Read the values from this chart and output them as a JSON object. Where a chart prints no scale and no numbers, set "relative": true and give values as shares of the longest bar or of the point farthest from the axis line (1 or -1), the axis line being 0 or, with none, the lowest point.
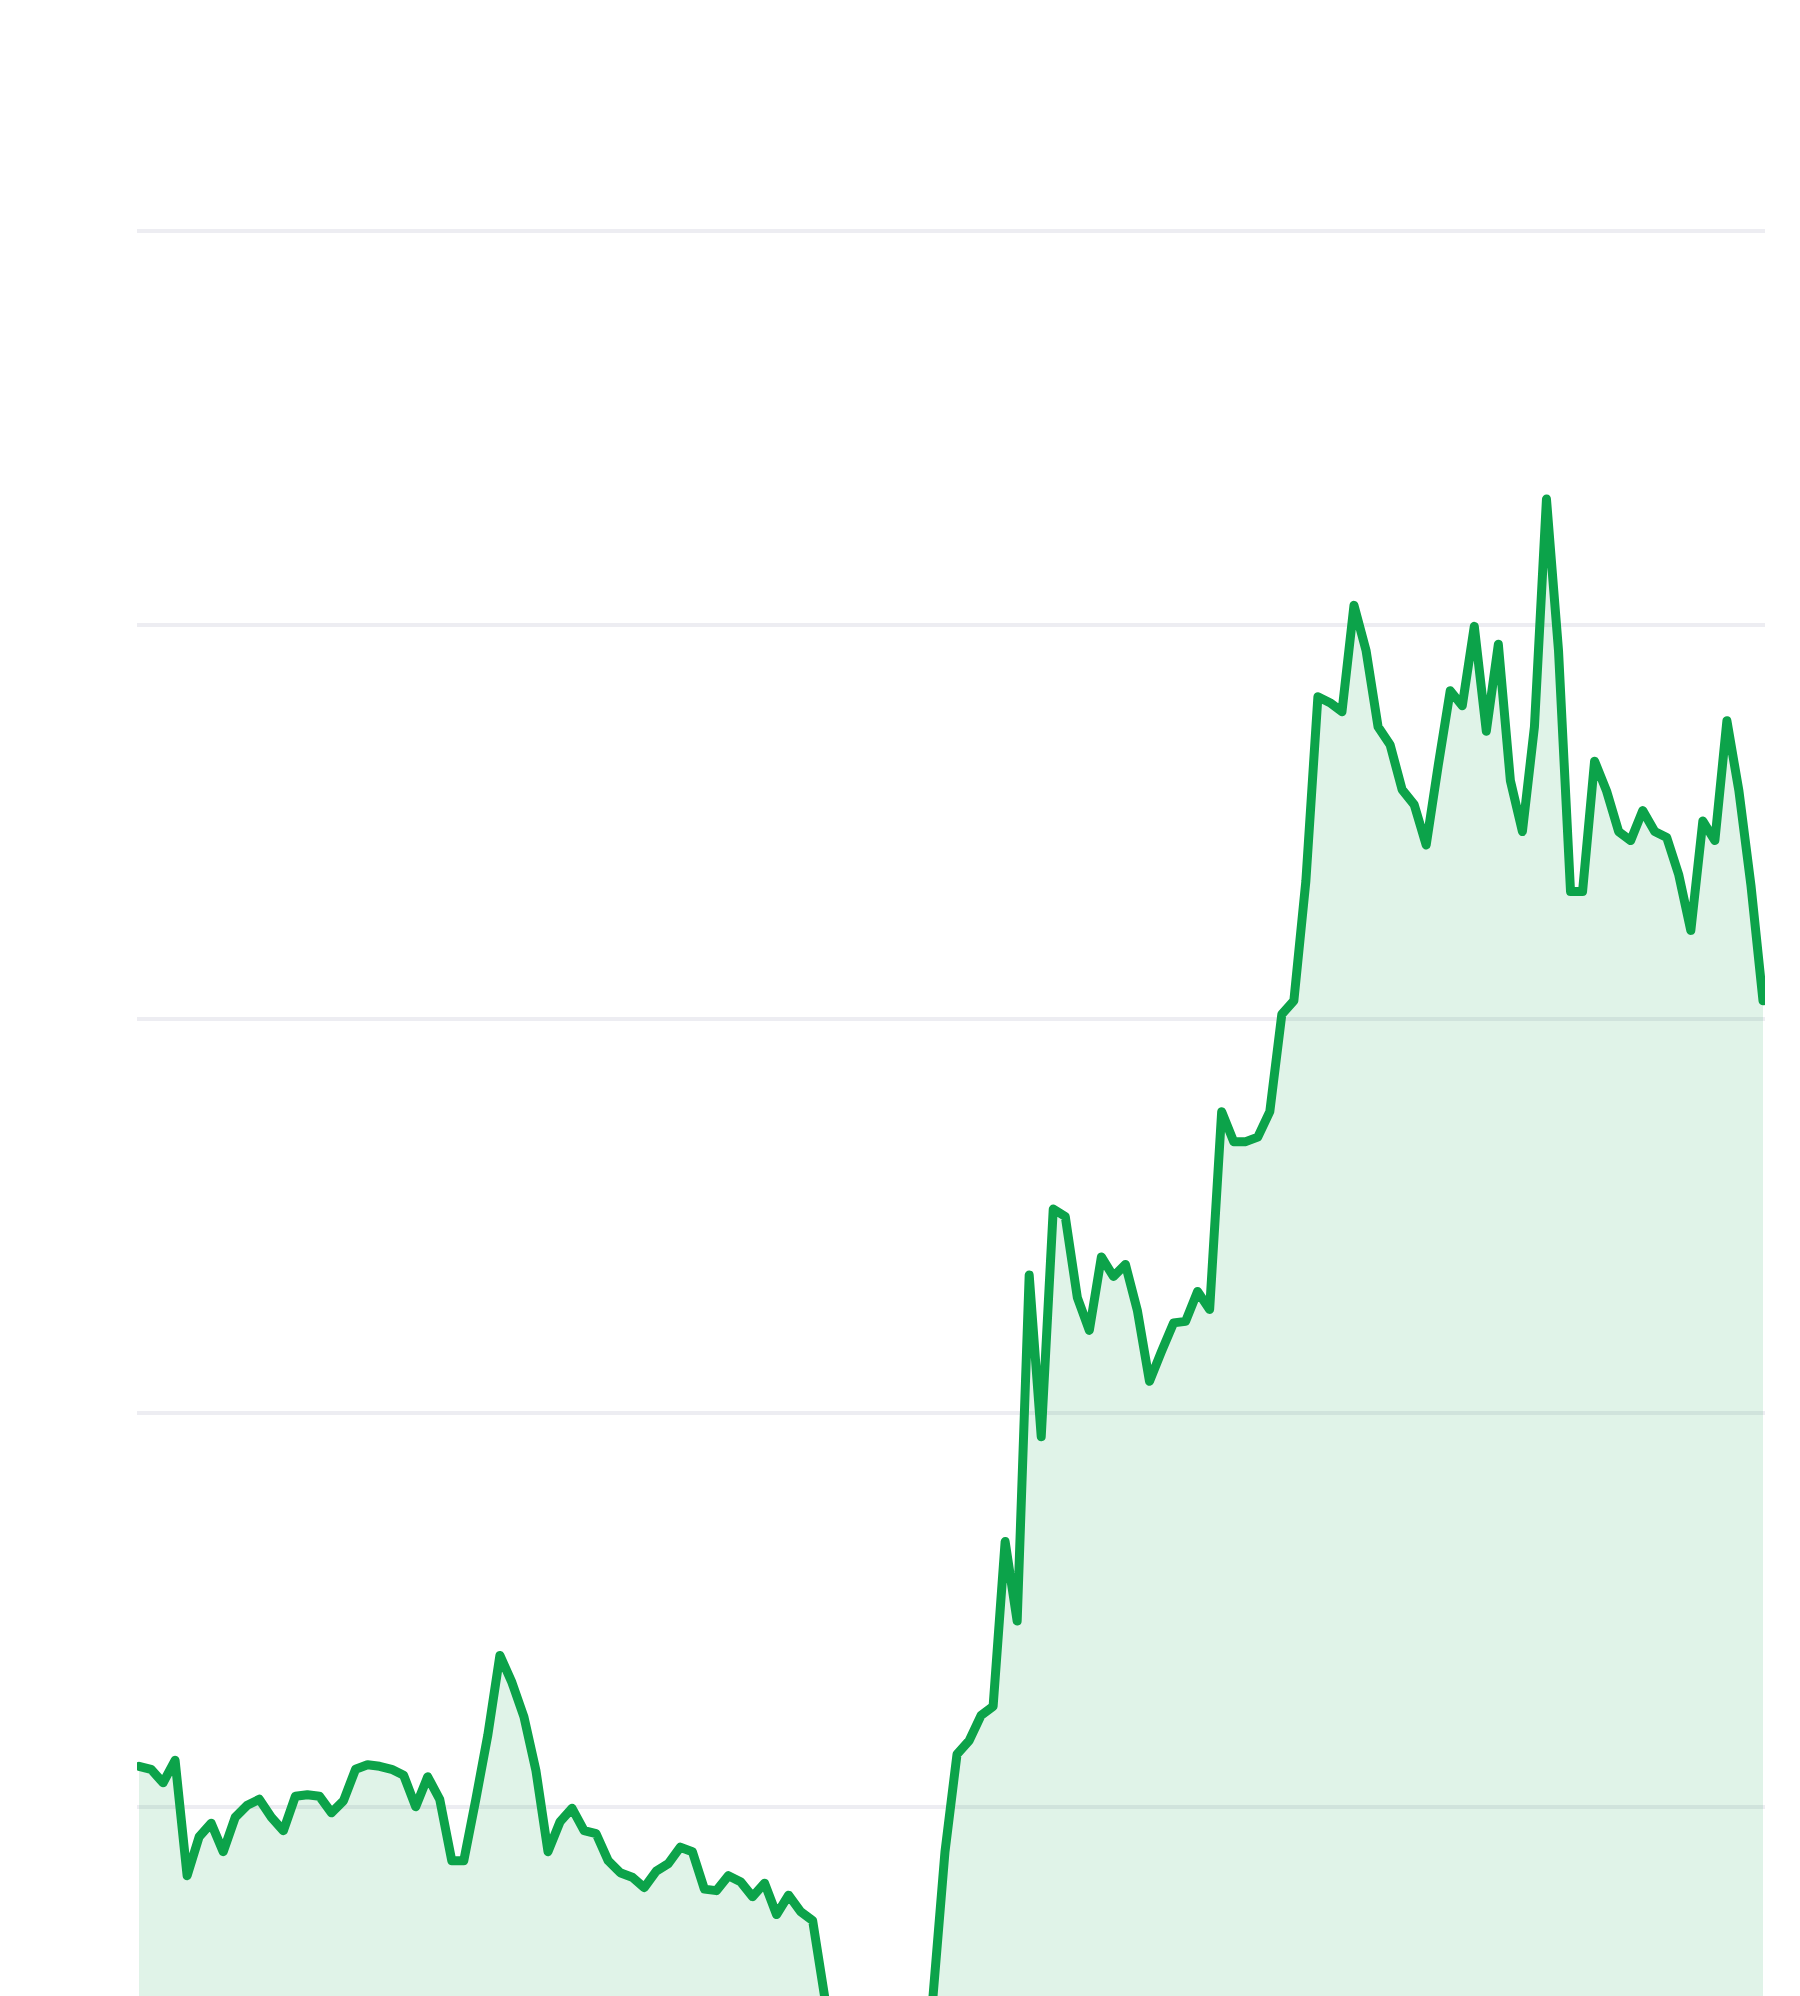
{
  "chart_data": {
    "type": "area",
    "relative": true,
    "grid": "y",
    "color": "#0ca34a",
    "categories": [
      null,
      null,
      null,
      null,
      null,
      null,
      null,
      null,
      null,
      null,
      null,
      null,
      null,
      null,
      null,
      null,
      null,
      null,
      null,
      null,
      null,
      null,
      null,
      null,
      null,
      null,
      null,
      null,
      null,
      null,
      null,
      null,
      null,
      null,
      null,
      null,
      null,
      null,
      null,
      null,
      null,
      null,
      null,
      null,
      null,
      null,
      null,
      null,
      null,
      null,
      null,
      null,
      null,
      null,
      null,
      null,
      null,
      null,
      null,
      null,
      null,
      null,
      null,
      null,
      null,
      null,
      null,
      null,
      null,
      null,
      null,
      null,
      null,
      null,
      null,
      null,
      null,
      null,
      null,
      null,
      null,
      null,
      null,
      null,
      null,
      null,
      null,
      null,
      null,
      null,
      null,
      null,
      null,
      null,
      null,
      null,
      null,
      null,
      null,
      null,
      null,
      null,
      null,
      null,
      null,
      null,
      null,
      null,
      null,
      null,
      null,
      null,
      null,
      null,
      null,
      null,
      null,
      null,
      null,
      null,
      null,
      null,
      null,
      null,
      null,
      null,
      null,
      null,
      null,
      null,
      null,
      null,
      null,
      null,
      null,
      null
    ],
    "values": [
      0.154,
      0.152,
      0.143,
      0.158,
      0.081,
      0.107,
      0.116,
      0.097,
      0.12,
      0.128,
      0.132,
      0.12,
      0.111,
      0.134,
      0.135,
      0.134,
      0.123,
      0.131,
      0.152,
      0.155,
      0.154,
      0.152,
      0.148,
      0.127,
      0.147,
      0.132,
      0.091,
      0.091,
      0.132,
      0.175,
      0.228,
      0.21,
      0.187,
      0.151,
      0.097,
      0.117,
      0.126,
      0.111,
      0.109,
      0.091,
      0.083,
      0.08,
      0.073,
      0.084,
      0.089,
      0.1,
      0.097,
      0.072,
      0.071,
      0.081,
      0.077,
      0.067,
      0.076,
      0.055,
      0.068,
      0.057,
      0.051,
      0,
      null,
      null,
      null,
      null,
      null,
      null,
      null,
      null,
      0,
      0.097,
      0.162,
      0.171,
      0.188,
      0.194,
      0.304,
      0.251,
      0.482,
      0.374,
      0.526,
      0.521,
      0.467,
      0.445,
      0.494,
      0.481,
      0.489,
      0.458,
      0.411,
      0.431,
      0.45,
      0.451,
      0.471,
      0.459,
      0.591,
      0.571,
      0.571,
      0.574,
      0.591,
      0.656,
      0.665,
      0.745,
      0.868,
      0.864,
      0.858,
      0.929,
      0.899,
      0.848,
      0.836,
      0.806,
      0.796,
      0.769,
      0.822,
      0.872,
      0.862,
      0.915,
      0.845,
      0.903,
      0.812,
      0.778,
      0.848,
      1.0,
      0.899,
      0.738,
      0.738,
      0.825,
      0.805,
      0.778,
      0.772,
      0.792,
      0.778,
      0.774,
      0.749,
      0.712,
      0.785,
      0.772,
      0.852,
      0.805,
      0.742,
      0.665
    ]
  }
}
